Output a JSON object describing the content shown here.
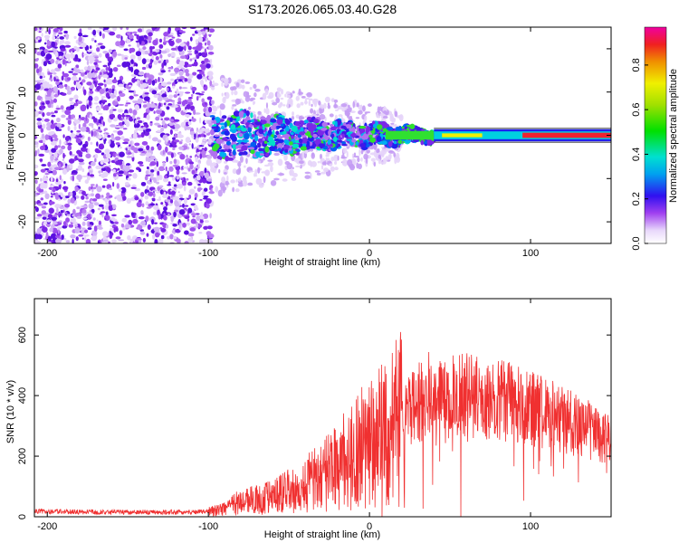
{
  "chart_data": [
    {
      "type": "heatmap",
      "title": "S173.2026.065.03.40.G28",
      "xlabel": "Height of straight line (km)",
      "ylabel": "Frequency (Hz)",
      "xlim": [
        -208,
        150
      ],
      "ylim": [
        -25,
        25
      ],
      "xticks": [
        -200,
        -100,
        0,
        100
      ],
      "yticks": [
        -20,
        -10,
        0,
        10,
        20
      ],
      "colorbar": {
        "label": "Normalized spectral amplitude",
        "range": [
          0,
          0.97
        ],
        "ticks": [
          0.0,
          0.2,
          0.4,
          0.6,
          0.8
        ]
      },
      "description": "Noise speckle for height < -100 km; coherent band centered near 0 Hz narrowing with height; strong amplitude (~0.9) line near 0 Hz above ~40 km"
    },
    {
      "type": "line",
      "xlabel": "Height of straight line (km)",
      "ylabel": "SNR (10 * v/v)",
      "xlim": [
        -208,
        150
      ],
      "ylim": [
        0,
        720
      ],
      "xticks": [
        -200,
        -100,
        0,
        100
      ],
      "yticks": [
        0,
        200,
        400,
        600
      ],
      "series": [
        {
          "name": "SNR",
          "color": "#f03030",
          "x": [
            -208,
            -180,
            -150,
            -120,
            -100,
            -90,
            -80,
            -70,
            -60,
            -50,
            -40,
            -30,
            -20,
            -10,
            0,
            10,
            20,
            30,
            40,
            50,
            60,
            70,
            80,
            90,
            100,
            110,
            120,
            130,
            140,
            150
          ],
          "y": [
            18,
            16,
            15,
            15,
            17,
            25,
            50,
            55,
            65,
            85,
            105,
            130,
            165,
            205,
            245,
            275,
            330,
            380,
            390,
            395,
            400,
            395,
            385,
            375,
            360,
            340,
            320,
            300,
            280,
            265
          ]
        }
      ]
    }
  ]
}
